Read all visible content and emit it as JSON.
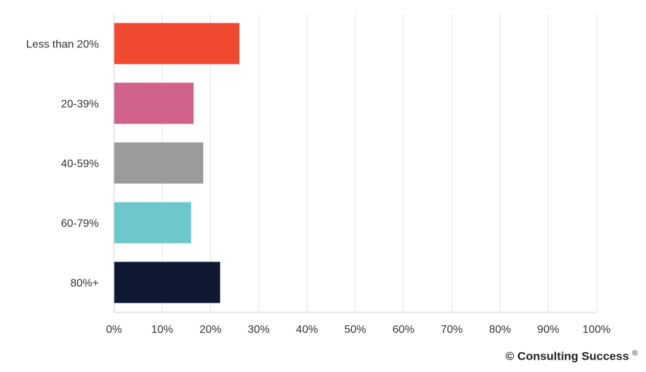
{
  "chart_data": {
    "type": "bar",
    "orientation": "horizontal",
    "categories": [
      "Less than 20%",
      "20-39%",
      "40-59%",
      "60-79%",
      "80%+"
    ],
    "values": [
      26,
      16.5,
      18.5,
      16,
      22
    ],
    "colors": [
      "#ef4a30",
      "#d0628c",
      "#9b9b9b",
      "#6ec8cb",
      "#0e1833"
    ],
    "xlim": [
      0,
      100
    ],
    "xticks": [
      "0%",
      "10%",
      "20%",
      "30%",
      "40%",
      "50%",
      "60%",
      "70%",
      "80%",
      "90%",
      "100%"
    ],
    "grid": true
  },
  "footer": {
    "credit": "© Consulting Success",
    "credit_mark": "®"
  }
}
